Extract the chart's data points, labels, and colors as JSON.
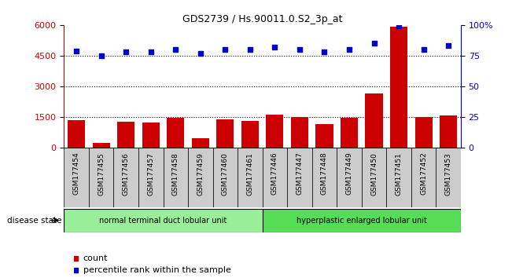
{
  "title": "GDS2739 / Hs.90011.0.S2_3p_at",
  "samples": [
    "GSM177454",
    "GSM177455",
    "GSM177456",
    "GSM177457",
    "GSM177458",
    "GSM177459",
    "GSM177460",
    "GSM177461",
    "GSM177446",
    "GSM177447",
    "GSM177448",
    "GSM177449",
    "GSM177450",
    "GSM177451",
    "GSM177452",
    "GSM177453"
  ],
  "counts": [
    1320,
    200,
    1270,
    1200,
    1450,
    450,
    1380,
    1280,
    1600,
    1490,
    1150,
    1430,
    2650,
    5900,
    1470,
    1580
  ],
  "percentiles": [
    79,
    75,
    78,
    78,
    80,
    77,
    80,
    80,
    82,
    80,
    78,
    80,
    85,
    99,
    80,
    83
  ],
  "group1_label": "normal terminal duct lobular unit",
  "group2_label": "hyperplastic enlarged lobular unit",
  "group1_count": 8,
  "group2_count": 8,
  "ylim_left": [
    0,
    6000
  ],
  "ylim_right": [
    0,
    100
  ],
  "yticks_left": [
    0,
    1500,
    3000,
    4500,
    6000
  ],
  "yticks_right": [
    0,
    25,
    50,
    75,
    100
  ],
  "bar_color": "#cc0000",
  "dot_color": "#0000cc",
  "group1_color": "#99ee99",
  "group2_color": "#55dd55",
  "label_count": "count",
  "label_percentile": "percentile rank within the sample",
  "disease_state_label": "disease state",
  "left_axis_color": "#cc0000",
  "right_axis_color": "#0000cc",
  "xtick_bg_color": "#cccccc",
  "grid_yticks": [
    1500,
    3000,
    4500
  ]
}
